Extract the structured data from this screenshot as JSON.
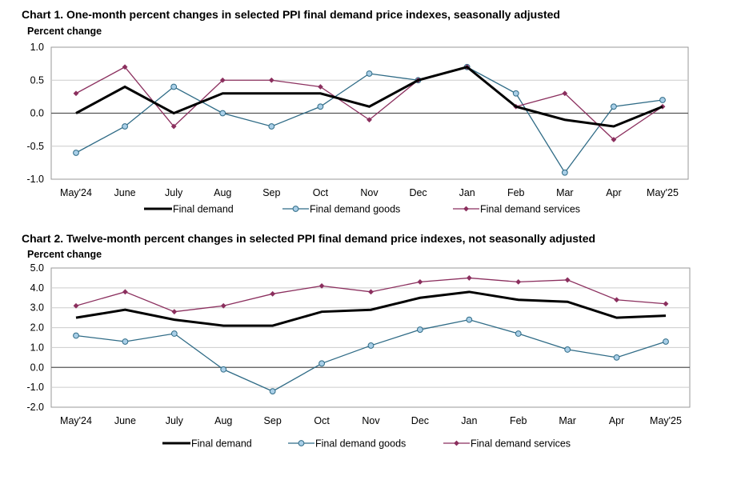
{
  "colors": {
    "final_demand": "#000000",
    "goods_line": "#2f6b86",
    "goods_marker": "#a9cfe8",
    "services": "#8b2f5e",
    "grid": "#cccccc",
    "frame": "#999999"
  },
  "chart_data": [
    {
      "type": "line",
      "title": "Chart 1. One-month percent changes in selected PPI final demand price indexes, seasonally adjusted",
      "ylabel": "Percent change",
      "xlabel": "",
      "categories": [
        "May'24",
        "June",
        "July",
        "Aug",
        "Sep",
        "Oct",
        "Nov",
        "Dec",
        "Jan",
        "Feb",
        "Mar",
        "Apr",
        "May'25"
      ],
      "ylim": [
        -1.0,
        1.0
      ],
      "yticks": [
        "1.0",
        "0.5",
        "0.0",
        "-0.5",
        "-1.0"
      ],
      "ytick_values": [
        1.0,
        0.5,
        0.0,
        -0.5,
        -1.0
      ],
      "grid": true,
      "legend_position": "bottom-center",
      "series": [
        {
          "name": "Final demand",
          "key": "fd",
          "values": [
            0.0,
            0.4,
            0.0,
            0.3,
            0.3,
            0.3,
            0.1,
            0.5,
            0.7,
            0.1,
            -0.1,
            -0.2,
            0.1
          ]
        },
        {
          "name": "Final demand goods",
          "key": "goods",
          "values": [
            -0.6,
            -0.2,
            0.4,
            0.0,
            -0.2,
            0.1,
            0.6,
            0.5,
            0.7,
            0.3,
            -0.9,
            0.1,
            0.2
          ]
        },
        {
          "name": "Final demand services",
          "key": "services",
          "values": [
            0.3,
            0.7,
            -0.2,
            0.5,
            0.5,
            0.4,
            -0.1,
            0.5,
            0.7,
            0.1,
            0.3,
            -0.4,
            0.1
          ]
        }
      ]
    },
    {
      "type": "line",
      "title": "Chart 2. Twelve-month percent changes in selected PPI final demand price indexes, not seasonally adjusted",
      "ylabel": "Percent change",
      "xlabel": "",
      "categories": [
        "May'24",
        "June",
        "July",
        "Aug",
        "Sep",
        "Oct",
        "Nov",
        "Dec",
        "Jan",
        "Feb",
        "Mar",
        "Apr",
        "May'25"
      ],
      "ylim": [
        -2.0,
        5.0
      ],
      "yticks": [
        "5.0",
        "4.0",
        "3.0",
        "2.0",
        "1.0",
        "0.0",
        "-1.0",
        "-2.0"
      ],
      "ytick_values": [
        5.0,
        4.0,
        3.0,
        2.0,
        1.0,
        0.0,
        -1.0,
        -2.0
      ],
      "grid": true,
      "legend_position": "bottom-center",
      "series": [
        {
          "name": "Final demand",
          "key": "fd",
          "values": [
            2.5,
            2.9,
            2.4,
            2.1,
            2.1,
            2.8,
            2.9,
            3.5,
            3.8,
            3.4,
            3.3,
            2.5,
            2.6
          ]
        },
        {
          "name": "Final demand goods",
          "key": "goods",
          "values": [
            1.6,
            1.3,
            1.7,
            -0.1,
            -1.2,
            0.2,
            1.1,
            1.9,
            2.4,
            1.7,
            0.9,
            0.5,
            1.3
          ]
        },
        {
          "name": "Final demand services",
          "key": "services",
          "values": [
            3.1,
            3.8,
            2.8,
            3.1,
            3.7,
            4.1,
            3.8,
            4.3,
            4.5,
            4.3,
            4.4,
            3.4,
            3.2
          ]
        }
      ]
    }
  ]
}
